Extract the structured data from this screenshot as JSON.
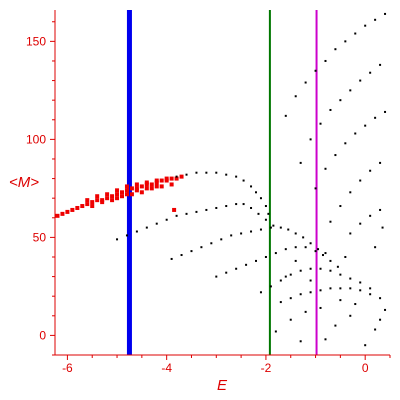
{
  "chart_data": {
    "type": "scatter",
    "xlabel": "E",
    "ylabel": "<M>",
    "xlim": [
      -6.25,
      0.5
    ],
    "ylim": [
      -10,
      166
    ],
    "xticks": [
      -6,
      -4,
      -2,
      0
    ],
    "xtick_labels": [
      "-6",
      "-4",
      "-2",
      "0"
    ],
    "yticks": [
      0,
      50,
      100,
      150
    ],
    "ytick_labels": [
      "0",
      "50",
      "100",
      "150"
    ],
    "grid": false,
    "vertical_lines": [
      {
        "x": -4.75,
        "color": "#0000ee"
      },
      {
        "x": -1.92,
        "color": "#007700"
      },
      {
        "x": -0.98,
        "color": "#cc00cc"
      }
    ],
    "series": [
      {
        "color": "#ee0000",
        "marker_size": 4,
        "points": [
          [
            -6.2,
            61
          ],
          [
            -6.1,
            62
          ],
          [
            -6.0,
            63
          ],
          [
            -5.9,
            64
          ],
          [
            -5.8,
            65
          ],
          [
            -5.7,
            66
          ],
          [
            -5.6,
            67
          ],
          [
            -5.5,
            68
          ],
          [
            -5.4,
            69
          ],
          [
            -5.3,
            69
          ],
          [
            -5.2,
            70
          ],
          [
            -5.1,
            71
          ],
          [
            -5.0,
            72
          ],
          [
            -4.9,
            73
          ],
          [
            -4.8,
            74
          ],
          [
            -4.7,
            75
          ],
          [
            -4.6,
            75
          ],
          [
            -4.5,
            76
          ],
          [
            -4.4,
            77
          ],
          [
            -4.3,
            77
          ],
          [
            -4.2,
            78
          ],
          [
            -4.1,
            79
          ],
          [
            -4.0,
            79
          ],
          [
            -3.9,
            80
          ],
          [
            -5.6,
            69
          ],
          [
            -5.4,
            71
          ],
          [
            -5.2,
            72
          ],
          [
            -5.0,
            74
          ],
          [
            -4.8,
            76
          ],
          [
            -4.6,
            77
          ],
          [
            -4.4,
            78
          ],
          [
            -4.2,
            79
          ],
          [
            -4.0,
            80
          ],
          [
            -5.5,
            66
          ],
          [
            -5.3,
            68
          ],
          [
            -5.1,
            69
          ],
          [
            -4.9,
            71
          ],
          [
            -4.7,
            72
          ],
          [
            -4.5,
            73
          ],
          [
            -4.3,
            75
          ],
          [
            -4.1,
            76
          ],
          [
            -5.0,
            70
          ],
          [
            -4.8,
            72
          ],
          [
            -4.6,
            74
          ],
          [
            -4.4,
            75
          ],
          [
            -4.2,
            76
          ],
          [
            -3.8,
            80
          ],
          [
            -3.7,
            81
          ],
          [
            -3.9,
            77
          ],
          [
            -3.85,
            64
          ]
        ]
      },
      {
        "color": "#000000",
        "marker_size": 2,
        "points": [
          [
            -3.8,
            81
          ],
          [
            -3.6,
            82
          ],
          [
            -3.4,
            83
          ],
          [
            -3.2,
            83
          ],
          [
            -3.0,
            83
          ],
          [
            -2.8,
            82
          ],
          [
            -2.6,
            81
          ],
          [
            -2.45,
            79
          ],
          [
            -2.3,
            76
          ],
          [
            -2.2,
            73
          ],
          [
            -2.1,
            70
          ],
          [
            -2.0,
            66
          ],
          [
            -1.95,
            62
          ],
          [
            -5.0,
            49
          ],
          [
            -4.8,
            51
          ],
          [
            -4.6,
            53
          ],
          [
            -4.4,
            55
          ],
          [
            -4.2,
            57
          ],
          [
            -4.0,
            59
          ],
          [
            -3.8,
            61
          ],
          [
            -3.6,
            62
          ],
          [
            -3.4,
            63
          ],
          [
            -3.2,
            64
          ],
          [
            -3.0,
            65
          ],
          [
            -2.8,
            66
          ],
          [
            -2.6,
            67
          ],
          [
            -2.45,
            67
          ],
          [
            -2.3,
            65
          ],
          [
            -2.15,
            62
          ],
          [
            -2.0,
            59
          ],
          [
            -1.85,
            56
          ],
          [
            -3.9,
            39
          ],
          [
            -3.7,
            41
          ],
          [
            -3.5,
            43
          ],
          [
            -3.3,
            45
          ],
          [
            -3.1,
            47
          ],
          [
            -2.9,
            49
          ],
          [
            -2.7,
            51
          ],
          [
            -2.5,
            52
          ],
          [
            -2.3,
            53
          ],
          [
            -2.1,
            54
          ],
          [
            -1.9,
            55
          ],
          [
            -1.7,
            55
          ],
          [
            -1.55,
            54
          ],
          [
            -1.4,
            52
          ],
          [
            -1.25,
            50
          ],
          [
            -1.1,
            47
          ],
          [
            -0.95,
            44
          ],
          [
            -0.8,
            42
          ],
          [
            -3.0,
            30
          ],
          [
            -2.8,
            32
          ],
          [
            -2.6,
            34
          ],
          [
            -2.4,
            36
          ],
          [
            -2.2,
            38
          ],
          [
            -2.0,
            40
          ],
          [
            -1.8,
            42
          ],
          [
            -1.6,
            44
          ],
          [
            -1.4,
            45
          ],
          [
            -1.2,
            45
          ],
          [
            -1.0,
            43
          ],
          [
            -0.85,
            41
          ],
          [
            -0.7,
            38
          ],
          [
            -0.55,
            35
          ],
          [
            -2.1,
            22
          ],
          [
            -1.9,
            25
          ],
          [
            -1.7,
            28
          ],
          [
            -1.5,
            31
          ],
          [
            -1.3,
            33
          ],
          [
            -1.1,
            34
          ],
          [
            -0.9,
            34
          ],
          [
            -0.7,
            33
          ],
          [
            -0.5,
            31
          ],
          [
            -0.3,
            29
          ],
          [
            -0.1,
            27
          ],
          [
            0.1,
            24
          ],
          [
            -1.7,
            17
          ],
          [
            -1.5,
            19
          ],
          [
            -1.3,
            21
          ],
          [
            -1.1,
            22
          ],
          [
            -0.9,
            23
          ],
          [
            -0.7,
            24
          ],
          [
            -0.5,
            24
          ],
          [
            -0.3,
            24
          ],
          [
            -0.1,
            23
          ],
          [
            0.1,
            21
          ],
          [
            0.3,
            19
          ],
          [
            -1.6,
            112
          ],
          [
            -1.4,
            122
          ],
          [
            -1.2,
            129
          ],
          [
            -1.0,
            135
          ],
          [
            -0.8,
            140
          ],
          [
            -0.6,
            146
          ],
          [
            -0.4,
            150
          ],
          [
            -0.2,
            154
          ],
          [
            0.0,
            158
          ],
          [
            0.2,
            161
          ],
          [
            0.4,
            164
          ],
          [
            -1.3,
            88
          ],
          [
            -1.1,
            100
          ],
          [
            -0.9,
            108
          ],
          [
            -0.7,
            115
          ],
          [
            -0.5,
            120
          ],
          [
            -0.3,
            125
          ],
          [
            -0.1,
            130
          ],
          [
            0.1,
            134
          ],
          [
            0.3,
            138
          ],
          [
            -1.0,
            75
          ],
          [
            -0.8,
            85
          ],
          [
            -0.6,
            92
          ],
          [
            -0.4,
            98
          ],
          [
            -0.2,
            103
          ],
          [
            0.0,
            107
          ],
          [
            0.2,
            111
          ],
          [
            0.4,
            114
          ],
          [
            -0.7,
            58
          ],
          [
            -0.5,
            66
          ],
          [
            -0.3,
            73
          ],
          [
            -0.1,
            79
          ],
          [
            0.1,
            84
          ],
          [
            0.3,
            88
          ],
          [
            -0.3,
            52
          ],
          [
            -0.1,
            57
          ],
          [
            0.1,
            61
          ],
          [
            0.3,
            64
          ],
          [
            -1.5,
            8
          ],
          [
            -1.2,
            12
          ],
          [
            -0.9,
            14
          ],
          [
            -0.6,
            5
          ],
          [
            -0.3,
            10
          ],
          [
            0.0,
            -5
          ],
          [
            0.2,
            3
          ],
          [
            0.4,
            13
          ],
          [
            -1.8,
            2
          ],
          [
            -1.3,
            -3
          ],
          [
            -0.8,
            -2
          ],
          [
            -0.5,
            18
          ],
          [
            -0.2,
            16
          ],
          [
            0.3,
            8
          ],
          [
            -1.6,
            30
          ],
          [
            -1.4,
            38
          ],
          [
            -1.1,
            28
          ],
          [
            -0.4,
            40
          ],
          [
            0.2,
            45
          ],
          [
            0.35,
            55
          ]
        ]
      }
    ]
  }
}
